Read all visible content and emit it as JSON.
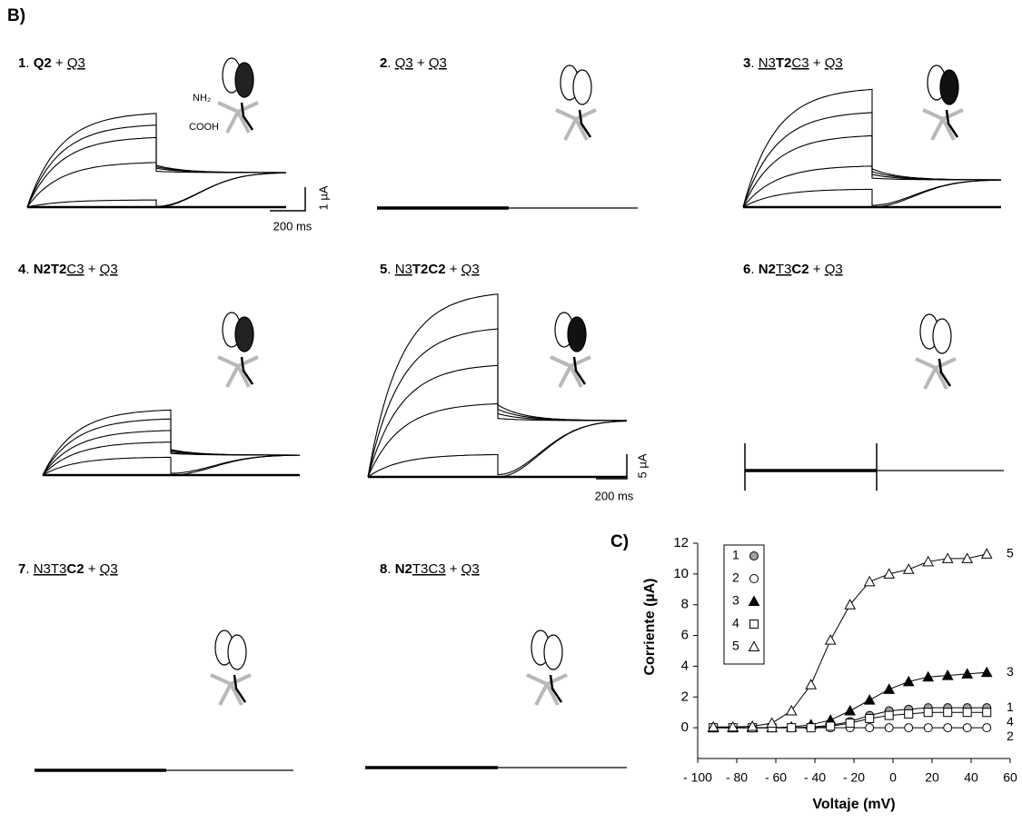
{
  "panel_label": "B)",
  "panels": [
    {
      "parts": [
        {
          "text": "1",
          "style": "bold"
        },
        {
          "text": ". ",
          "style": "plain"
        },
        {
          "text": "Q2",
          "style": "bold"
        },
        {
          "text": " + ",
          "style": "plain"
        },
        {
          "text": "Q3",
          "style": "underline"
        }
      ]
    },
    {
      "parts": [
        {
          "text": "2",
          "style": "bold"
        },
        {
          "text": ". ",
          "style": "plain"
        },
        {
          "text": "Q3",
          "style": "underline"
        },
        {
          "text": " + ",
          "style": "plain"
        },
        {
          "text": "Q3",
          "style": "underline"
        }
      ]
    },
    {
      "parts": [
        {
          "text": "3",
          "style": "bold"
        },
        {
          "text": ". ",
          "style": "plain"
        },
        {
          "text": "N3",
          "style": "underline"
        },
        {
          "text": "T2",
          "style": "bold"
        },
        {
          "text": "C3",
          "style": "underline"
        },
        {
          "text": " + ",
          "style": "plain"
        },
        {
          "text": "Q3",
          "style": "underline"
        }
      ]
    },
    {
      "parts": [
        {
          "text": "4",
          "style": "bold"
        },
        {
          "text": ". ",
          "style": "plain"
        },
        {
          "text": "N2T2",
          "style": "bold"
        },
        {
          "text": "C3",
          "style": "underline"
        },
        {
          "text": " + ",
          "style": "plain"
        },
        {
          "text": "Q3",
          "style": "underline"
        }
      ]
    },
    {
      "parts": [
        {
          "text": "5",
          "style": "bold"
        },
        {
          "text": ". ",
          "style": "plain"
        },
        {
          "text": "N3",
          "style": "underline"
        },
        {
          "text": "T2C2",
          "style": "bold"
        },
        {
          "text": " + ",
          "style": "plain"
        },
        {
          "text": "Q3",
          "style": "underline"
        }
      ]
    },
    {
      "parts": [
        {
          "text": "6",
          "style": "bold"
        },
        {
          "text": ". ",
          "style": "plain"
        },
        {
          "text": "N2",
          "style": "bold"
        },
        {
          "text": "T3",
          "style": "underline"
        },
        {
          "text": "C2",
          "style": "bold"
        },
        {
          "text": " + ",
          "style": "plain"
        },
        {
          "text": "Q3",
          "style": "underline"
        }
      ]
    },
    {
      "parts": [
        {
          "text": "7",
          "style": "bold"
        },
        {
          "text": ". ",
          "style": "plain"
        },
        {
          "text": "N3T3",
          "style": "underline"
        },
        {
          "text": "C2",
          "style": "bold"
        },
        {
          "text": " + ",
          "style": "plain"
        },
        {
          "text": "Q3",
          "style": "underline"
        }
      ]
    },
    {
      "parts": [
        {
          "text": "8",
          "style": "bold"
        },
        {
          "text": ". ",
          "style": "plain"
        },
        {
          "text": "N2",
          "style": "bold"
        },
        {
          "text": "T3C3",
          "style": "underline"
        },
        {
          "text": " + ",
          "style": "plain"
        },
        {
          "text": "Q3",
          "style": "underline"
        }
      ]
    }
  ],
  "scale_bars": [
    {
      "time": "200 ms",
      "current": "1 µA"
    },
    {
      "time": "200 ms",
      "current": "5 µA"
    }
  ],
  "icon_labels": [
    "NH₂",
    "COOH"
  ],
  "chart_data": {
    "type": "scatter",
    "panel_label": "C)",
    "x_label": "Voltaje (mV)",
    "y_label": "Corriente (µA)",
    "x": [
      -92,
      -82,
      -72,
      -62,
      -52,
      -42,
      -32,
      -22,
      -12,
      -2,
      8,
      18,
      28,
      38,
      48
    ],
    "xlim": [
      -100,
      60
    ],
    "xticks": [
      {
        "value": -100,
        "label": "- 100"
      },
      {
        "value": -80,
        "label": "- 80"
      },
      {
        "value": -60,
        "label": "- 60"
      },
      {
        "value": -40,
        "label": "- 40"
      },
      {
        "value": -20,
        "label": "- 20"
      },
      0,
      20,
      40,
      60
    ],
    "ylim": [
      -2,
      12
    ],
    "yticks": [
      0,
      2,
      4,
      6,
      8,
      10,
      12
    ],
    "series": [
      {
        "name": "1",
        "marker": "circle",
        "color": "#a0a0a0",
        "values": [
          0,
          0,
          0,
          0,
          0,
          0.05,
          0.15,
          0.4,
          0.8,
          1.1,
          1.2,
          1.3,
          1.3,
          1.3,
          1.3
        ]
      },
      {
        "name": "2",
        "marker": "circle",
        "color": "#ffffff",
        "values": [
          0,
          0,
          0,
          0,
          0,
          0,
          0,
          0,
          0,
          0,
          0,
          0,
          0,
          0,
          0
        ]
      },
      {
        "name": "3",
        "marker": "triangle",
        "color": "#000000",
        "values": [
          0,
          0,
          0,
          0,
          0.05,
          0.2,
          0.5,
          1.1,
          1.8,
          2.5,
          3.0,
          3.3,
          3.4,
          3.5,
          3.6
        ]
      },
      {
        "name": "4",
        "marker": "square",
        "color": "#ffffff",
        "values": [
          0,
          0,
          0,
          0,
          0,
          0,
          0.1,
          0.3,
          0.6,
          0.8,
          0.9,
          1.0,
          1.0,
          1.0,
          1.0
        ]
      },
      {
        "name": "5",
        "marker": "triangle",
        "color": "#ffffff",
        "values": [
          0.05,
          0.05,
          0.1,
          0.3,
          1.1,
          2.8,
          5.7,
          8.0,
          9.5,
          10.0,
          10.3,
          10.8,
          11.0,
          11.0,
          11.3
        ]
      }
    ]
  }
}
